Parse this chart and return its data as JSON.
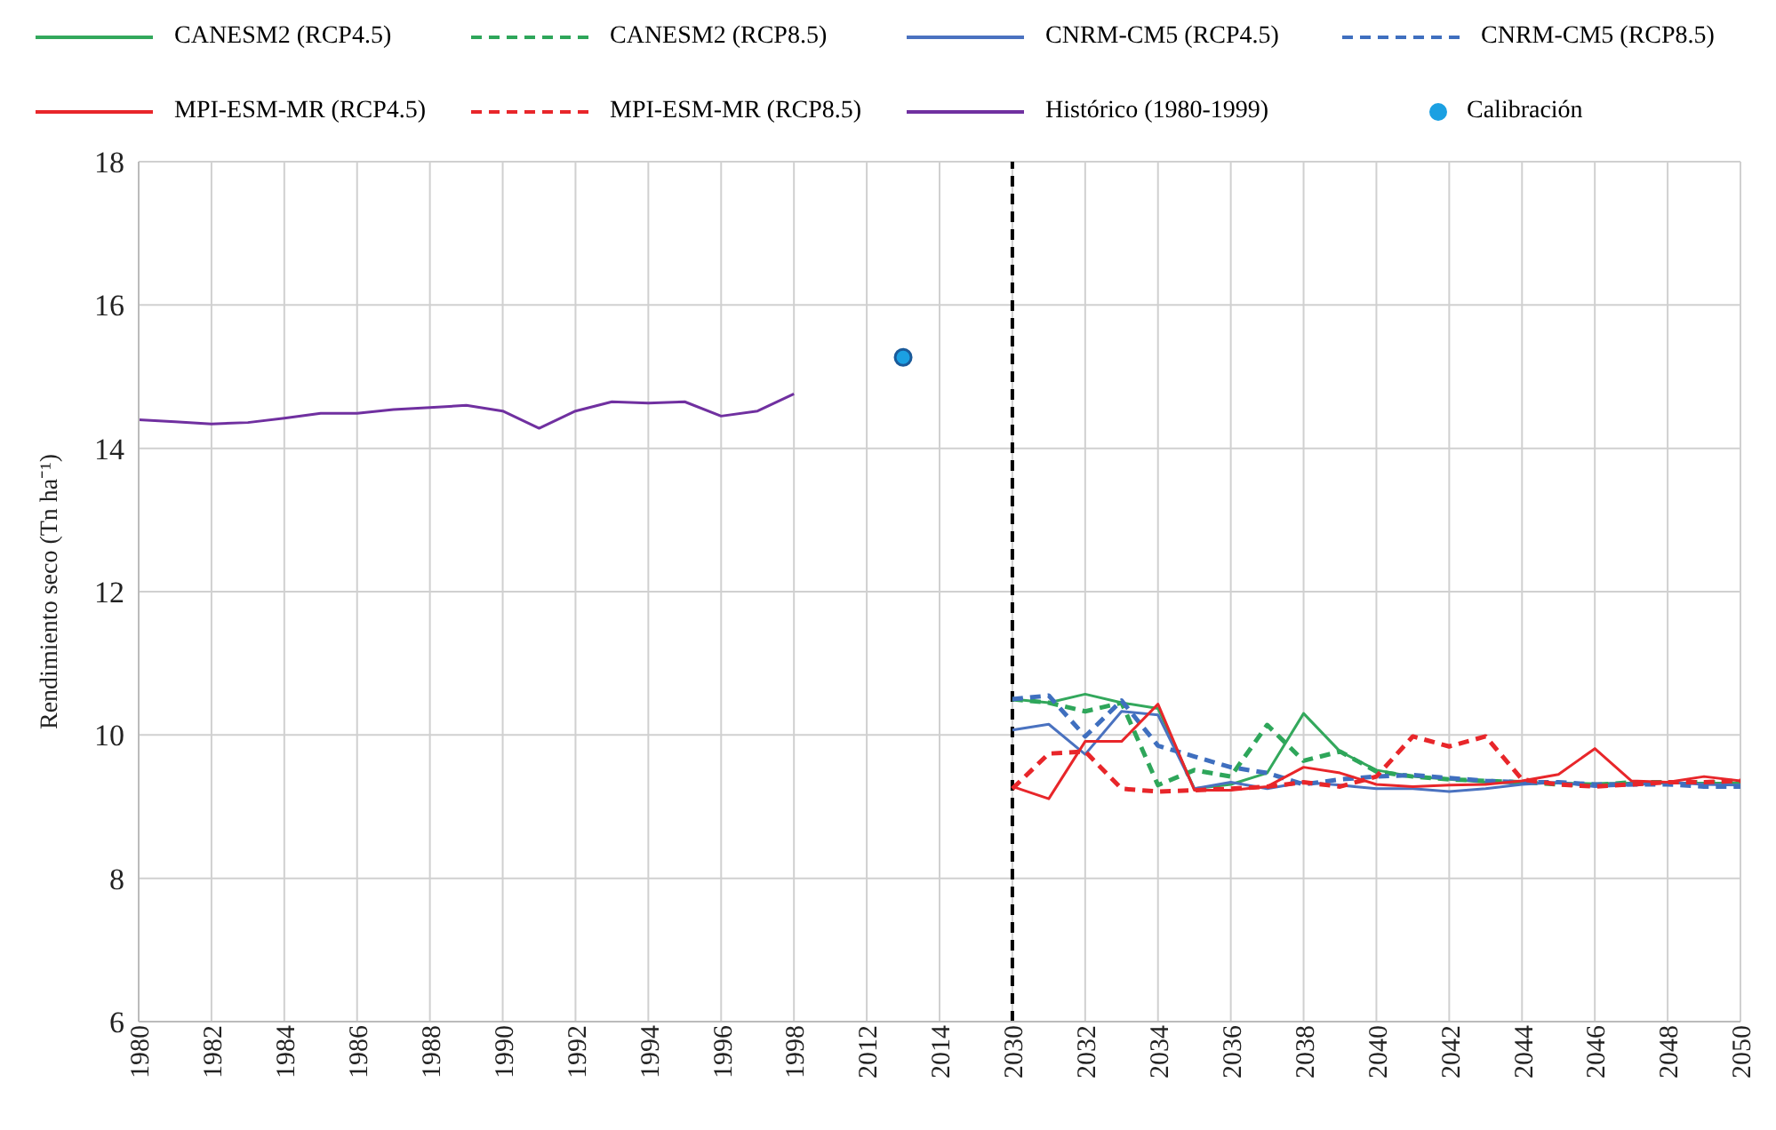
{
  "chart_data": {
    "type": "line",
    "ylabel": "Rendimiento seco  (Tn ha⁻¹)",
    "categories": [
      "1980",
      null,
      "1982",
      null,
      "1984",
      null,
      "1986",
      null,
      "1988",
      null,
      "1990",
      null,
      "1992",
      null,
      "1994",
      null,
      "1996",
      null,
      "1998",
      null,
      "2012",
      null,
      "2014",
      null,
      "2030",
      null,
      "2032",
      null,
      "2034",
      null,
      "2036",
      null,
      "2038",
      null,
      "2040",
      null,
      "2042",
      null,
      "2044",
      null,
      "2046",
      null,
      "2048",
      null,
      "2050"
    ],
    "series": [
      {
        "name": "CANESM2 (RCP4.5)",
        "color": "#33a85c",
        "line_style": "solid",
        "values": [
          null,
          null,
          null,
          null,
          null,
          null,
          null,
          null,
          null,
          null,
          null,
          null,
          null,
          null,
          null,
          null,
          null,
          null,
          null,
          null,
          null,
          null,
          null,
          null,
          10.5,
          10.45,
          10.57,
          10.45,
          10.37,
          9.25,
          9.31,
          9.47,
          10.3,
          9.77,
          9.51,
          9.42,
          9.38,
          9.34,
          9.33,
          9.33,
          9.32,
          9.33,
          9.33,
          9.33,
          9.33
        ]
      },
      {
        "name": "CANESM2 (RCP8.5)",
        "color": "#2ea65a",
        "line_style": "dashed",
        "values": [
          null,
          null,
          null,
          null,
          null,
          null,
          null,
          null,
          null,
          null,
          null,
          null,
          null,
          null,
          null,
          null,
          null,
          null,
          null,
          null,
          null,
          null,
          null,
          null,
          10.5,
          10.45,
          10.33,
          10.45,
          9.3,
          9.51,
          9.42,
          10.14,
          9.64,
          9.77,
          9.49,
          9.42,
          9.38,
          9.36,
          9.34,
          9.31,
          9.3,
          9.34,
          9.34,
          9.34,
          9.34
        ]
      },
      {
        "name": "CNRM-CM5 (RCP4.5)",
        "color": "#4a72c0",
        "line_style": "solid",
        "values": [
          null,
          null,
          null,
          null,
          null,
          null,
          null,
          null,
          null,
          null,
          null,
          null,
          null,
          null,
          null,
          null,
          null,
          null,
          null,
          null,
          null,
          null,
          null,
          null,
          10.07,
          10.15,
          9.73,
          10.33,
          10.28,
          9.25,
          9.34,
          9.25,
          9.34,
          9.3,
          9.25,
          9.25,
          9.21,
          9.25,
          9.31,
          9.34,
          9.28,
          9.3,
          9.34,
          9.31,
          9.3
        ]
      },
      {
        "name": "CNRM-CM5 (RCP8.5)",
        "color": "#3f6fbf",
        "line_style": "dashed",
        "values": [
          null,
          null,
          null,
          null,
          null,
          null,
          null,
          null,
          null,
          null,
          null,
          null,
          null,
          null,
          null,
          null,
          null,
          null,
          null,
          null,
          null,
          null,
          null,
          null,
          10.5,
          10.55,
          9.98,
          10.48,
          9.85,
          9.7,
          9.55,
          9.47,
          9.31,
          9.38,
          9.42,
          9.44,
          9.4,
          9.36,
          9.34,
          9.34,
          9.31,
          9.31,
          9.31,
          9.28,
          9.28
        ]
      },
      {
        "name": "MPI-ESM-MR (RCP4.5)",
        "color": "#e8262a",
        "line_style": "solid",
        "values": [
          null,
          null,
          null,
          null,
          null,
          null,
          null,
          null,
          null,
          null,
          null,
          null,
          null,
          null,
          null,
          null,
          null,
          null,
          null,
          null,
          null,
          null,
          null,
          null,
          9.28,
          9.11,
          9.91,
          9.91,
          10.43,
          9.23,
          9.23,
          9.28,
          9.55,
          9.47,
          9.31,
          9.28,
          9.3,
          9.31,
          9.36,
          9.45,
          9.81,
          9.36,
          9.34,
          9.42,
          9.36
        ]
      },
      {
        "name": "MPI-ESM-MR (RCP8.5)",
        "color": "#e8262a",
        "line_style": "dashed",
        "values": [
          null,
          null,
          null,
          null,
          null,
          null,
          null,
          null,
          null,
          null,
          null,
          null,
          null,
          null,
          null,
          null,
          null,
          null,
          null,
          null,
          null,
          null,
          null,
          null,
          9.25,
          9.74,
          9.77,
          9.25,
          9.21,
          9.23,
          9.25,
          9.28,
          9.34,
          9.28,
          9.42,
          9.98,
          9.84,
          9.98,
          9.38,
          9.31,
          9.28,
          9.31,
          9.34,
          9.34,
          9.36
        ]
      },
      {
        "name": "Histórico (1980-1999)",
        "color": "#7030a0",
        "line_style": "solid",
        "values": [
          14.4,
          14.37,
          14.34,
          14.36,
          14.42,
          14.49,
          14.49,
          14.54,
          14.57,
          14.6,
          14.52,
          14.28,
          14.52,
          14.65,
          14.63,
          14.65,
          14.45,
          14.52,
          14.76,
          null,
          null,
          null,
          null,
          null,
          null,
          null,
          null,
          null,
          null,
          null,
          null,
          null,
          null,
          null,
          null,
          null,
          null,
          null,
          null,
          null,
          null,
          null,
          null,
          null,
          null
        ]
      },
      {
        "name": "Calibración",
        "type": "scatter",
        "marker": "circle",
        "color": "#1ba0e2",
        "values": [
          null,
          null,
          null,
          null,
          null,
          null,
          null,
          null,
          null,
          null,
          null,
          null,
          null,
          null,
          null,
          null,
          null,
          null,
          null,
          null,
          null,
          15.27,
          null,
          null,
          null,
          null,
          null,
          null,
          null,
          null,
          null,
          null,
          null,
          null,
          null,
          null,
          null,
          null,
          null,
          null,
          null,
          null,
          null,
          null,
          null
        ]
      }
    ],
    "marker": "none",
    "ylim": [
      6,
      18
    ],
    "yticks": [
      6,
      8,
      10,
      12,
      14,
      16,
      18
    ],
    "grid": true,
    "legend": "top",
    "ref_lines": [
      {
        "axis": "x",
        "value": "2030",
        "color": "#000000",
        "line_style": "dashed"
      }
    ]
  }
}
